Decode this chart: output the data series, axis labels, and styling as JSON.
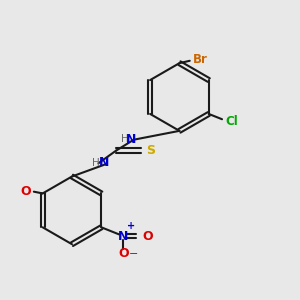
{
  "background_color": "#e8e8e8",
  "colors": {
    "bond": "#1a1a1a",
    "N": "#0000cc",
    "S": "#ccaa00",
    "Cl": "#00aa00",
    "Br": "#cc6600",
    "O": "#dd0000",
    "H": "#666666",
    "C": "#1a1a1a"
  },
  "figsize": [
    3.0,
    3.0
  ],
  "dpi": 100
}
